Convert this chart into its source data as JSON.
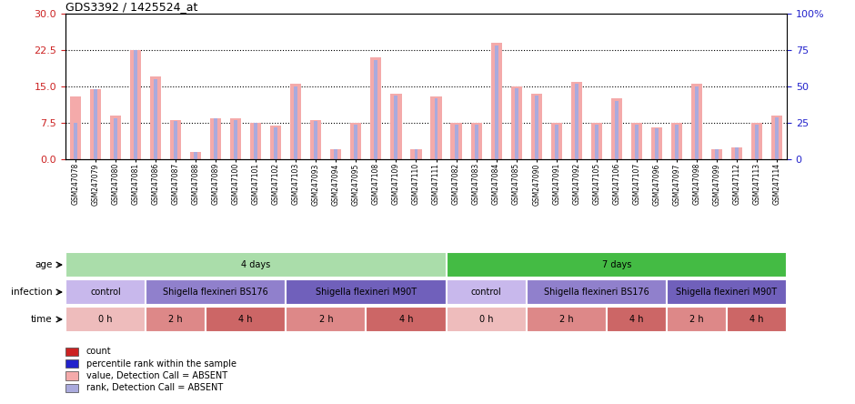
{
  "title": "GDS3392 / 1425524_at",
  "samples": [
    "GSM247078",
    "GSM247079",
    "GSM247080",
    "GSM247081",
    "GSM247086",
    "GSM247087",
    "GSM247088",
    "GSM247089",
    "GSM247100",
    "GSM247101",
    "GSM247102",
    "GSM247103",
    "GSM247093",
    "GSM247094",
    "GSM247095",
    "GSM247108",
    "GSM247109",
    "GSM247110",
    "GSM247111",
    "GSM247082",
    "GSM247083",
    "GSM247084",
    "GSM247085",
    "GSM247090",
    "GSM247091",
    "GSM247092",
    "GSM247105",
    "GSM247106",
    "GSM247107",
    "GSM247096",
    "GSM247097",
    "GSM247098",
    "GSM247099",
    "GSM247112",
    "GSM247113",
    "GSM247114"
  ],
  "values": [
    13.0,
    14.5,
    9.0,
    22.5,
    17.0,
    8.0,
    1.5,
    8.5,
    8.5,
    7.5,
    7.0,
    15.5,
    8.0,
    2.0,
    7.5,
    21.0,
    13.5,
    2.0,
    13.0,
    7.5,
    7.5,
    24.0,
    15.0,
    13.5,
    7.5,
    16.0,
    7.5,
    12.5,
    7.5,
    6.5,
    7.5,
    15.5,
    2.0,
    2.5,
    7.5,
    9.0
  ],
  "ranks_pct": [
    25,
    48,
    28,
    75,
    55,
    26,
    5,
    28,
    27,
    25,
    22,
    50,
    26,
    7,
    24,
    68,
    44,
    7,
    42,
    24,
    24,
    78,
    49,
    44,
    24,
    52,
    24,
    40,
    24,
    21,
    24,
    50,
    7,
    8,
    24,
    29
  ],
  "ylim_left": [
    0,
    30
  ],
  "yticks_left": [
    0,
    7.5,
    15.0,
    22.5,
    30
  ],
  "ylim_right": [
    0,
    100
  ],
  "yticks_right": [
    0,
    25,
    50,
    75,
    100
  ],
  "absent_bar_color": "#F4AAAA",
  "absent_rank_color": "#AAAADD",
  "count_color": "#CC2222",
  "percentile_color": "#2222CC",
  "age_groups": [
    {
      "label": "4 days",
      "start": 0,
      "end": 19,
      "color": "#AADDAA"
    },
    {
      "label": "7 days",
      "start": 19,
      "end": 36,
      "color": "#44BB44"
    }
  ],
  "infection_groups": [
    {
      "label": "control",
      "start": 0,
      "end": 4,
      "color": "#C8B8EC"
    },
    {
      "label": "Shigella flexineri BS176",
      "start": 4,
      "end": 11,
      "color": "#9080CC"
    },
    {
      "label": "Shigella flexineri M90T",
      "start": 11,
      "end": 19,
      "color": "#7060BB"
    },
    {
      "label": "control",
      "start": 19,
      "end": 23,
      "color": "#C8B8EC"
    },
    {
      "label": "Shigella flexineri BS176",
      "start": 23,
      "end": 30,
      "color": "#9080CC"
    },
    {
      "label": "Shigella flexineri M90T",
      "start": 30,
      "end": 36,
      "color": "#7060BB"
    }
  ],
  "time_groups": [
    {
      "label": "0 h",
      "start": 0,
      "end": 4,
      "color": "#EEBCBC"
    },
    {
      "label": "2 h",
      "start": 4,
      "end": 7,
      "color": "#DD8888"
    },
    {
      "label": "4 h",
      "start": 7,
      "end": 11,
      "color": "#CC6666"
    },
    {
      "label": "2 h",
      "start": 11,
      "end": 15,
      "color": "#DD8888"
    },
    {
      "label": "4 h",
      "start": 15,
      "end": 19,
      "color": "#CC6666"
    },
    {
      "label": "0 h",
      "start": 19,
      "end": 23,
      "color": "#EEBCBC"
    },
    {
      "label": "2 h",
      "start": 23,
      "end": 27,
      "color": "#DD8888"
    },
    {
      "label": "4 h",
      "start": 27,
      "end": 30,
      "color": "#CC6666"
    },
    {
      "label": "2 h",
      "start": 30,
      "end": 33,
      "color": "#DD8888"
    },
    {
      "label": "4 h",
      "start": 33,
      "end": 36,
      "color": "#CC6666"
    }
  ],
  "legend_items": [
    {
      "color": "#CC2222",
      "label": "count"
    },
    {
      "color": "#2222CC",
      "label": "percentile rank within the sample"
    },
    {
      "color": "#F4AAAA",
      "label": "value, Detection Call = ABSENT"
    },
    {
      "color": "#AAAADD",
      "label": "rank, Detection Call = ABSENT"
    }
  ],
  "row_labels": [
    "age",
    "infection",
    "time"
  ]
}
